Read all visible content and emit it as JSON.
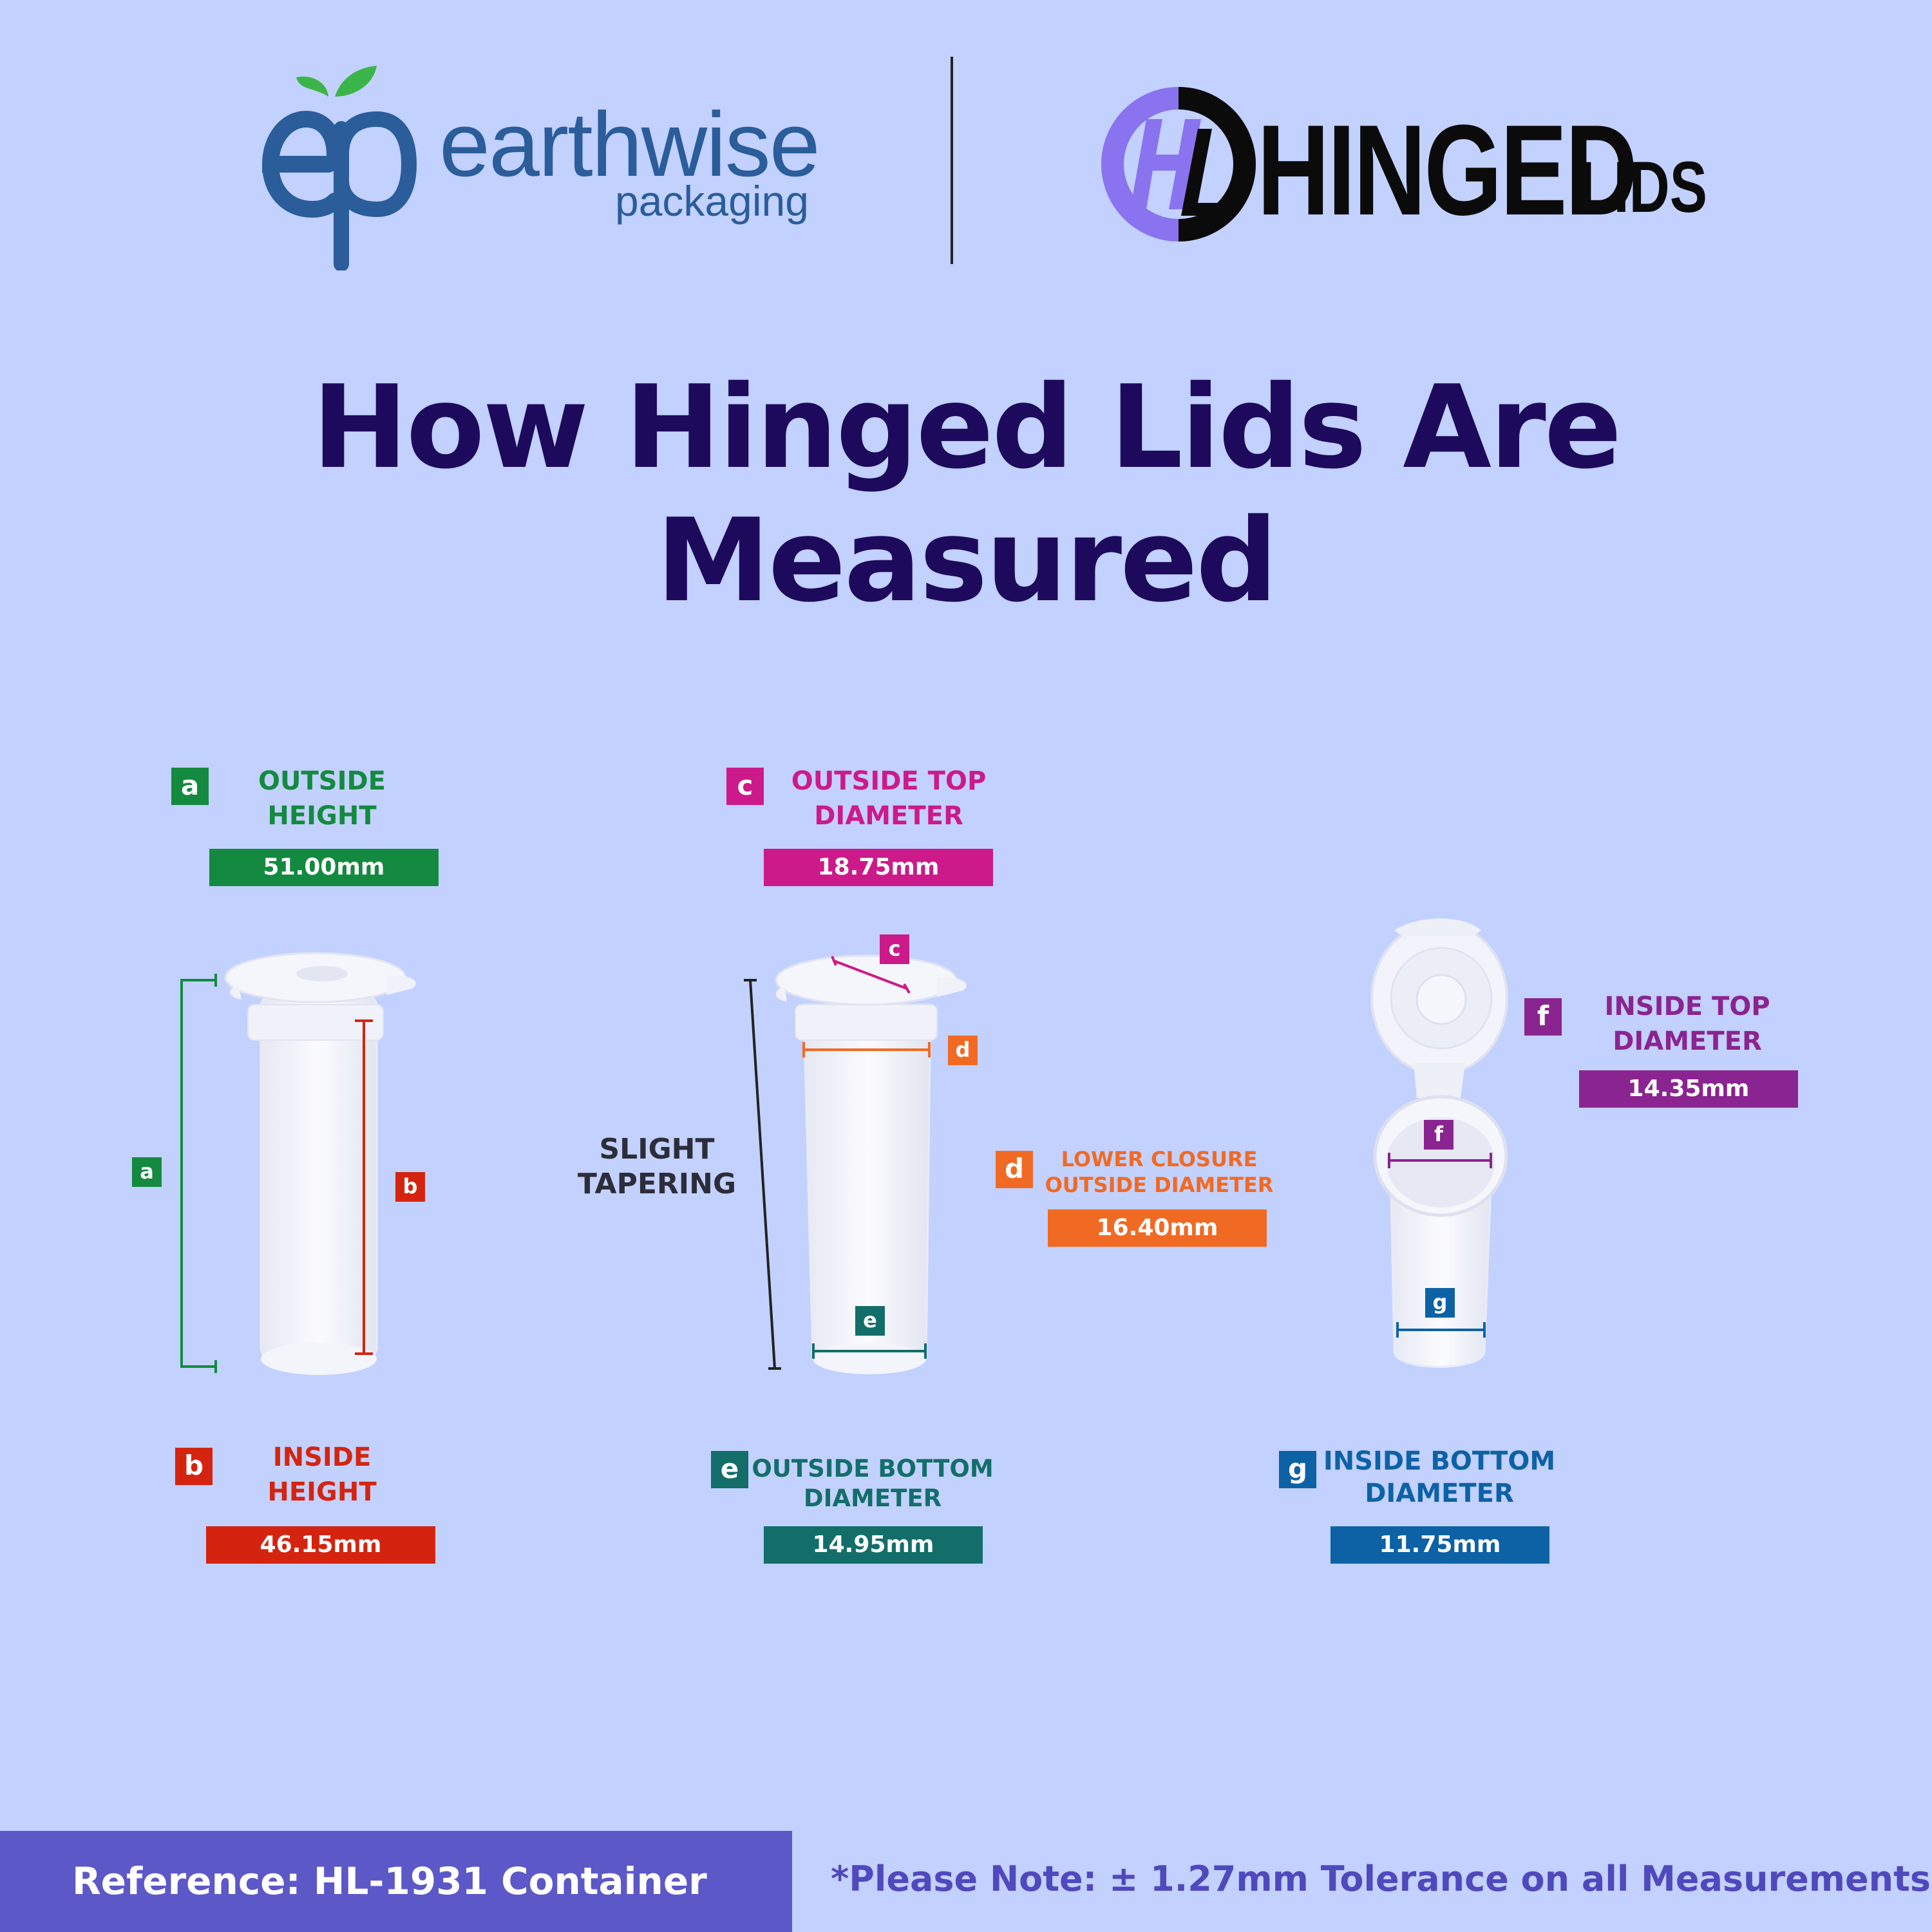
{
  "header": {
    "ep_logo_word": "earthwise",
    "ep_logo_sub": "packaging",
    "hl_logo_word": "HINGED",
    "hl_logo_suffix": "LIDS"
  },
  "title": "How Hinged Lids Are Measured",
  "measurements": {
    "a": {
      "letter": "a",
      "label_1": "OUTSIDE",
      "label_2": "HEIGHT",
      "value": "51.00mm",
      "color": "#138a3f"
    },
    "b": {
      "letter": "b",
      "label_1": "INSIDE",
      "label_2": "HEIGHT",
      "value": "46.15mm",
      "color": "#d42410"
    },
    "c": {
      "letter": "c",
      "label_1": "OUTSIDE TOP",
      "label_2": "DIAMETER",
      "value": "18.75mm",
      "color": "#cc1a8a"
    },
    "d": {
      "letter": "d",
      "label_1": "LOWER CLOSURE",
      "label_2": "OUTSIDE DIAMETER",
      "value": "16.40mm",
      "color": "#f06a24"
    },
    "e": {
      "letter": "e",
      "label_1": "OUTSIDE BOTTOM",
      "label_2": "DIAMETER",
      "value": "14.95mm",
      "color": "#136e6a"
    },
    "f": {
      "letter": "f",
      "label_1": "INSIDE TOP",
      "label_2": "DIAMETER",
      "value": "14.35mm",
      "color": "#8a2490"
    },
    "g": {
      "letter": "g",
      "label_1": "INSIDE BOTTOM",
      "label_2": "DIAMETER",
      "value": "11.75mm",
      "color": "#0d62a6"
    }
  },
  "tapering": {
    "line_1": "SLIGHT",
    "line_2": "TAPERING"
  },
  "footer": {
    "reference": "Reference: HL-1931 Container",
    "note": "*Please Note: ± 1.27mm Tolerance on all Measurements"
  }
}
